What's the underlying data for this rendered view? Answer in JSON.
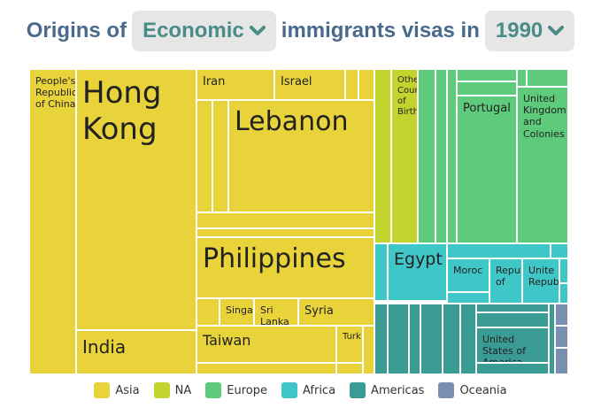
{
  "header": {
    "prefix": "Origins of",
    "category": "Economic",
    "middle": "immigrants visas in",
    "year": "1990"
  },
  "colors": {
    "Asia": "#e8d43a",
    "NA": "#c3d42f",
    "Europe": "#5ecb7c",
    "Africa": "#3fc7c7",
    "Americas": "#3a9a94",
    "Oceania": "#7a8fb0"
  },
  "legend": [
    {
      "name": "Asia",
      "color": "#e8d43a"
    },
    {
      "name": "NA",
      "color": "#c3d42f"
    },
    {
      "name": "Europe",
      "color": "#5ecb7c"
    },
    {
      "name": "Africa",
      "color": "#3fc7c7"
    },
    {
      "name": "Americas",
      "color": "#3a9a94"
    },
    {
      "name": "Oceania",
      "color": "#7a8fb0"
    }
  ],
  "chart_data": {
    "type": "treemap",
    "year": "1990",
    "visa_category": "Economic",
    "nodes": [
      {
        "name": "People's Republic of China",
        "region": "Asia"
      },
      {
        "name": "Hong Kong",
        "region": "Asia"
      },
      {
        "name": "India",
        "region": "Asia"
      },
      {
        "name": "Iran",
        "region": "Asia"
      },
      {
        "name": "Israel",
        "region": "Asia"
      },
      {
        "name": "Lebanon",
        "region": "Asia"
      },
      {
        "name": "Philippines",
        "region": "Asia"
      },
      {
        "name": "Singapore",
        "region": "Asia",
        "label": "Singap"
      },
      {
        "name": "Sri Lanka",
        "region": "Asia"
      },
      {
        "name": "Syria",
        "region": "Asia"
      },
      {
        "name": "Taiwan",
        "region": "Asia"
      },
      {
        "name": "Turkey",
        "region": "Asia",
        "label": "Turk"
      },
      {
        "name": "Other Country of Birth",
        "region": "NA",
        "label": "Othe\nCoun\nof\nBirth"
      },
      {
        "name": "Portugal",
        "region": "Europe"
      },
      {
        "name": "United Kingdom and Colonies",
        "region": "Europe"
      },
      {
        "name": "Egypt",
        "region": "Africa"
      },
      {
        "name": "Morocco",
        "region": "Africa",
        "label": "Moroc"
      },
      {
        "name": "Republic of ...",
        "region": "Africa",
        "label": "Repub\nof"
      },
      {
        "name": "United Republic ...",
        "region": "Africa",
        "label": "Unite\nRepub"
      },
      {
        "name": "United States of America",
        "region": "Americas"
      }
    ]
  }
}
